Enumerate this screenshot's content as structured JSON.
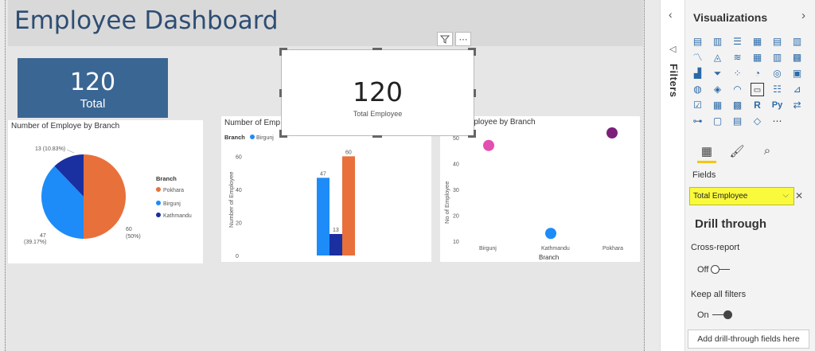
{
  "page": {
    "title": "Employee Dashboard"
  },
  "card_total": {
    "value": "120",
    "label": "Total"
  },
  "card_total_employee": {
    "value": "120",
    "label": "Total Employee"
  },
  "visual_header": {
    "filter_icon": "filter-icon",
    "more_icon": "more-options-icon"
  },
  "pie": {
    "title": "Number of Employe by Branch",
    "legend_title": "Branch",
    "legend": [
      "Pokhara",
      "Birgunj",
      "Kathmandu"
    ],
    "labels": {
      "kathmandu": "13 (10.83%)",
      "birgunj_value": "47",
      "birgunj_pct": "(39.17%)",
      "pokhara_value": "60",
      "pokhara_pct": "(50%)"
    },
    "colors": {
      "Pokhara": "#e8703a",
      "Birgunj": "#1d8cf8",
      "Kathmandu": "#1a2fa0"
    }
  },
  "bar": {
    "title": "Number of Emp",
    "legend_title": "Branch",
    "legend_first": "Birgunj",
    "ylabel": "Number of Employee",
    "yticks": [
      "0",
      "20",
      "40",
      "60"
    ]
  },
  "scatter": {
    "title": "mployee by Branch",
    "ylabel": "No of Employee",
    "xlabel": "Branch",
    "yticks": [
      "10",
      "20",
      "30",
      "40",
      "50"
    ],
    "xticks": [
      "Birgunj",
      "Kathmandu",
      "Pokhara"
    ]
  },
  "chart_data": [
    {
      "type": "pie",
      "title": "Number of Employe by Branch",
      "categories": [
        "Pokhara",
        "Birgunj",
        "Kathmandu"
      ],
      "values": [
        60,
        47,
        13
      ],
      "percentages": [
        "50%",
        "39.17%",
        "10.83%"
      ],
      "legend": "right"
    },
    {
      "type": "bar",
      "categories": [
        "Birgunj",
        "Kathmandu",
        "Pokhara"
      ],
      "values": [
        47,
        13,
        60
      ],
      "ylabel": "Number of Employee",
      "ylim": [
        0,
        65
      ],
      "legend": "top-left"
    },
    {
      "type": "scatter",
      "categories": [
        "Birgunj",
        "Kathmandu",
        "Pokhara"
      ],
      "values": [
        47,
        13,
        60
      ],
      "xlabel": "Branch",
      "ylabel": "No of Employee",
      "ylim": [
        5,
        60
      ]
    }
  ],
  "filters_pane": {
    "label": "Filters"
  },
  "viz_pane": {
    "title": "Visualizations",
    "fields_label": "Fields",
    "field_value": "Total Employee",
    "drill_title": "Drill through",
    "cross_report": "Cross-report",
    "cross_report_state": "Off",
    "keep_filters": "Keep all filters",
    "keep_filters_state": "On",
    "add_button": "Add drill-through fields here",
    "accent": "#f2c811"
  }
}
